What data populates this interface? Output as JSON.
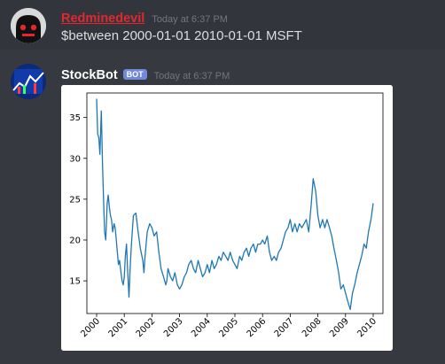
{
  "messages": [
    {
      "username": "Redminedevil",
      "timestamp": "Today at 6:37 PM",
      "content": "$between 2000-01-01 2010-01-01 MSFT",
      "avatar_icon": "ghost-avatar-icon"
    },
    {
      "username": "StockBot",
      "badge": "BOT",
      "timestamp": "Today at 6:37 PM",
      "avatar_icon": "stock-chart-avatar-icon"
    }
  ],
  "colors": {
    "background": "#36393f",
    "highlight_row": "#32353b",
    "username_red": "#e3272f",
    "bot_badge": "#7289da",
    "line": "#1f77b4"
  },
  "chart_data": {
    "type": "line",
    "x_ticks": [
      "2000",
      "2001",
      "2002",
      "2003",
      "2004",
      "2005",
      "2006",
      "2007",
      "2008",
      "2009",
      "2010"
    ],
    "y_ticks": [
      15,
      20,
      25,
      30,
      35
    ],
    "xlim": [
      2000,
      2010
    ],
    "ylim": [
      11,
      38
    ],
    "grid": false,
    "series": [
      {
        "x": [
          2000.0,
          2000.04,
          2000.08,
          2000.12,
          2000.17,
          2000.21,
          2000.25,
          2000.29,
          2000.33,
          2000.38,
          2000.42,
          2000.46,
          2000.5,
          2000.54,
          2000.58,
          2000.63,
          2000.67,
          2000.71,
          2000.75,
          2000.79,
          2000.83,
          2000.88,
          2000.92,
          2000.96,
          2001.0,
          2001.04,
          2001.08,
          2001.12,
          2001.17,
          2001.21,
          2001.25,
          2001.29,
          2001.33,
          2001.42,
          2001.5,
          2001.58,
          2001.67,
          2001.71,
          2001.75,
          2001.83,
          2001.92,
          2002.0,
          2002.08,
          2002.17,
          2002.25,
          2002.33,
          2002.42,
          2002.5,
          2002.54,
          2002.58,
          2002.67,
          2002.75,
          2002.83,
          2002.92,
          2003.0,
          2003.08,
          2003.17,
          2003.25,
          2003.33,
          2003.42,
          2003.5,
          2003.58,
          2003.67,
          2003.75,
          2003.83,
          2003.92,
          2004.0,
          2004.08,
          2004.17,
          2004.25,
          2004.33,
          2004.42,
          2004.5,
          2004.58,
          2004.67,
          2004.75,
          2004.83,
          2004.92,
          2005.0,
          2005.08,
          2005.17,
          2005.25,
          2005.33,
          2005.42,
          2005.5,
          2005.58,
          2005.67,
          2005.75,
          2005.83,
          2005.92,
          2006.0,
          2006.08,
          2006.17,
          2006.25,
          2006.33,
          2006.42,
          2006.5,
          2006.58,
          2006.67,
          2006.75,
          2006.83,
          2006.92,
          2007.0,
          2007.08,
          2007.17,
          2007.25,
          2007.33,
          2007.42,
          2007.5,
          2007.58,
          2007.67,
          2007.75,
          2007.83,
          2007.92,
          2008.0,
          2008.08,
          2008.17,
          2008.25,
          2008.33,
          2008.42,
          2008.5,
          2008.58,
          2008.67,
          2008.75,
          2008.83,
          2008.92,
          2009.0,
          2009.08,
          2009.17,
          2009.25,
          2009.33,
          2009.42,
          2009.5,
          2009.58,
          2009.67,
          2009.75,
          2009.83,
          2009.92,
          2010.0
        ],
        "y": [
          37.3,
          33.0,
          32.5,
          30.5,
          35.8,
          29.5,
          25.0,
          21.0,
          20.0,
          24.5,
          25.5,
          24.0,
          23.0,
          22.5,
          21.0,
          22.0,
          21.5,
          20.0,
          18.5,
          17.0,
          17.5,
          16.0,
          15.0,
          14.5,
          15.5,
          18.0,
          19.5,
          16.5,
          13.0,
          16.5,
          19.0,
          21.0,
          23.0,
          23.3,
          21.0,
          19.0,
          17.5,
          16.0,
          18.0,
          21.0,
          22.0,
          21.5,
          20.5,
          21.0,
          18.5,
          16.5,
          15.5,
          14.5,
          15.0,
          16.5,
          15.5,
          15.0,
          16.0,
          14.5,
          14.0,
          14.5,
          15.5,
          16.0,
          17.0,
          17.5,
          16.5,
          16.0,
          17.5,
          16.5,
          15.5,
          16.0,
          17.0,
          16.0,
          17.5,
          16.5,
          17.0,
          18.0,
          17.5,
          18.5,
          18.0,
          17.5,
          18.5,
          17.5,
          17.0,
          16.5,
          18.0,
          17.5,
          18.5,
          19.0,
          18.0,
          19.0,
          19.5,
          18.5,
          19.5,
          19.5,
          20.0,
          19.5,
          20.5,
          18.5,
          17.5,
          18.0,
          17.5,
          18.5,
          19.0,
          20.0,
          21.0,
          21.5,
          22.5,
          21.0,
          22.0,
          21.0,
          22.0,
          21.5,
          22.0,
          22.5,
          21.0,
          24.0,
          27.5,
          26.0,
          23.0,
          21.5,
          22.5,
          21.5,
          22.5,
          21.5,
          20.5,
          19.0,
          17.5,
          16.0,
          14.0,
          14.5,
          13.5,
          12.5,
          11.5,
          13.5,
          14.5,
          16.0,
          17.0,
          18.0,
          19.5,
          19.0,
          21.0,
          22.5,
          24.5
        ]
      }
    ]
  }
}
